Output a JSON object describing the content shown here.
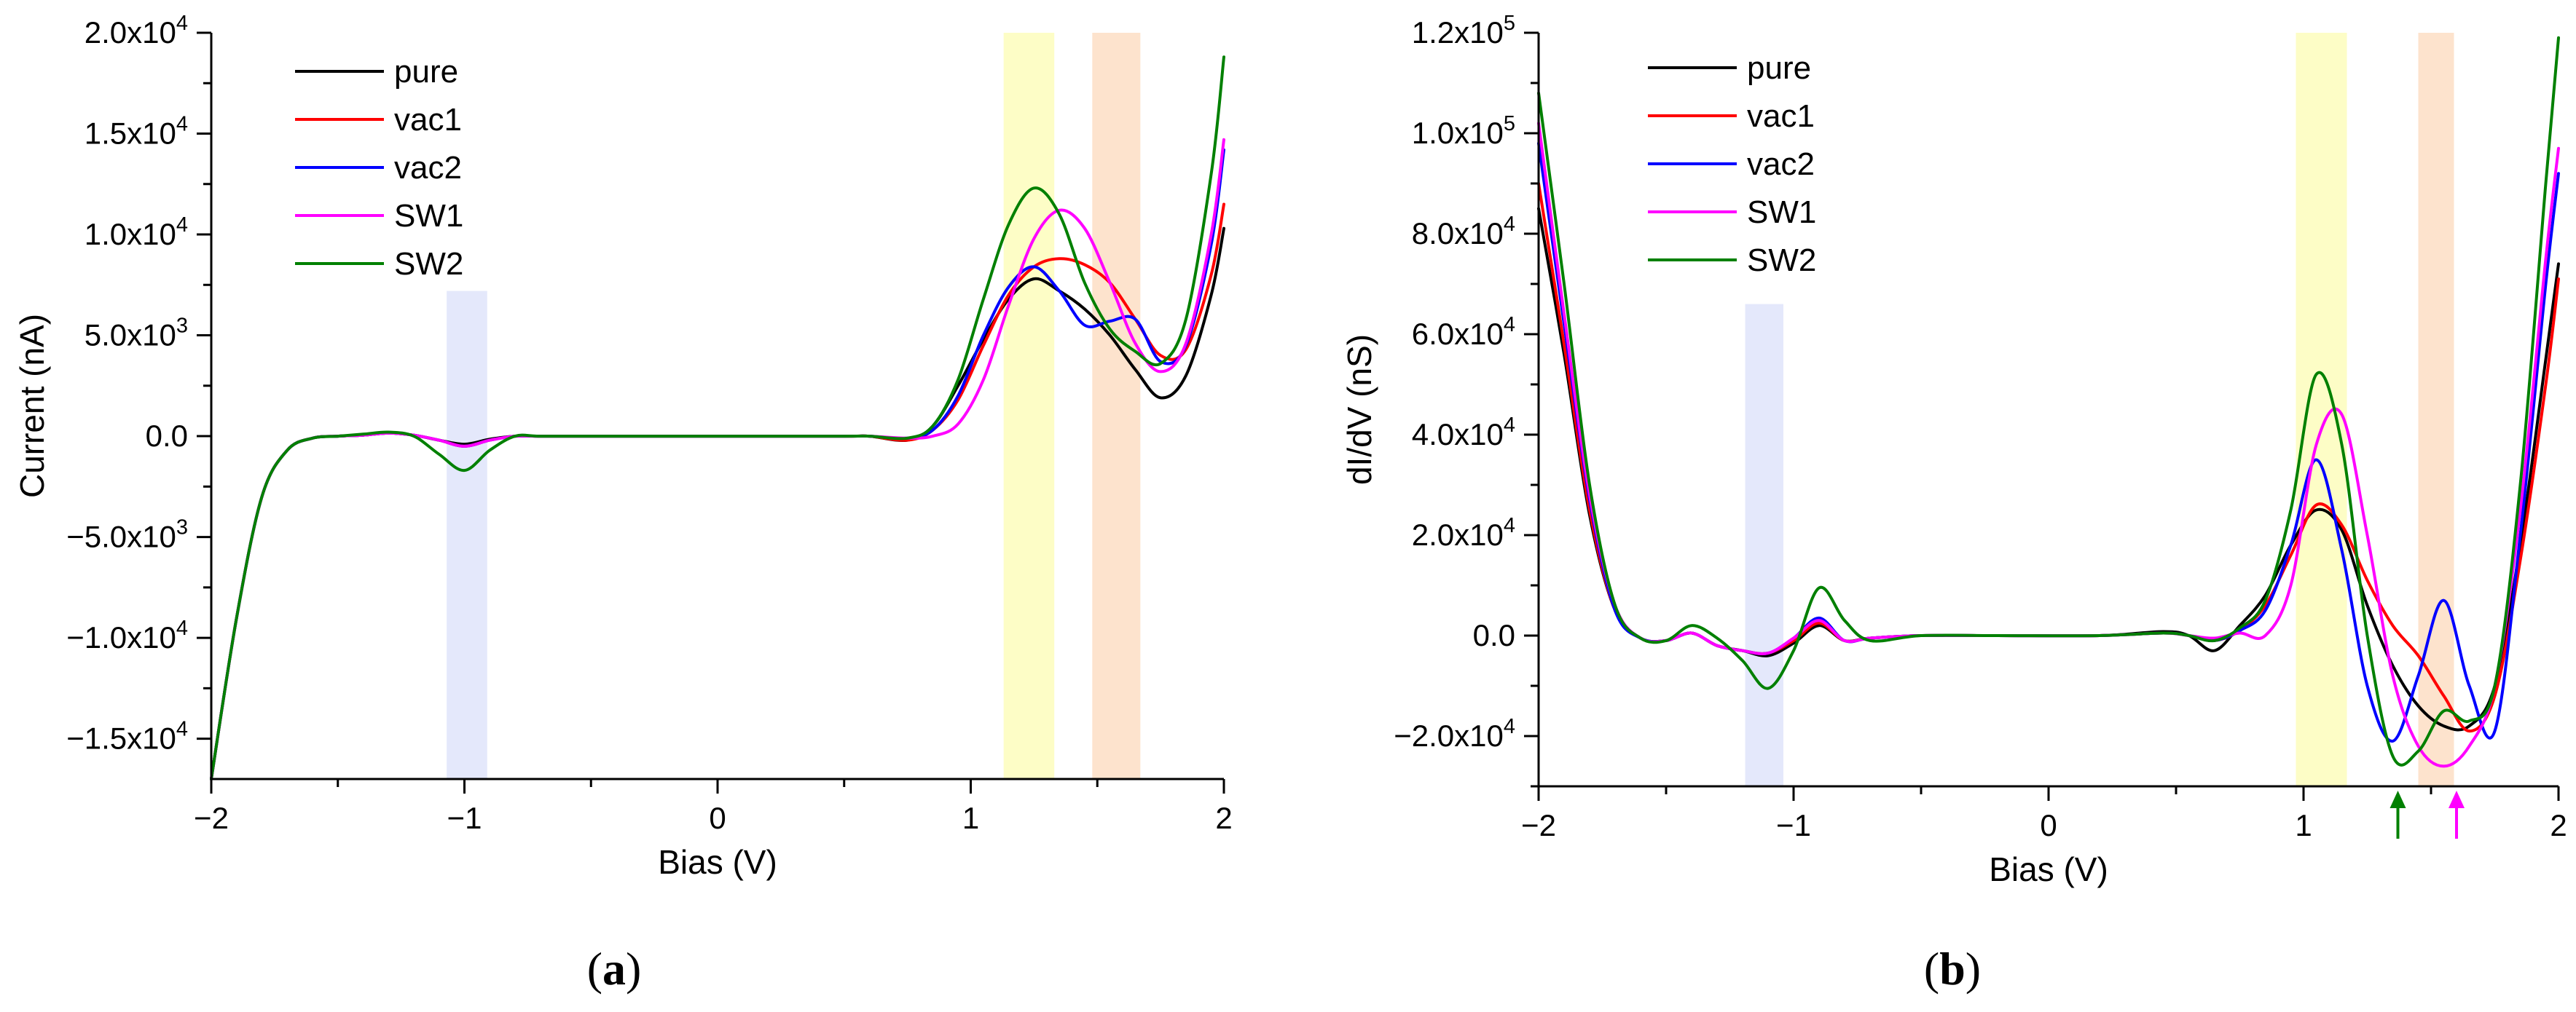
{
  "chart_data": [
    {
      "type": "line",
      "panel_label": "a",
      "xlabel": "Bias (V)",
      "ylabel": "Current (nA)",
      "xlim": [
        -2,
        2
      ],
      "ylim": [
        -17000,
        20000
      ],
      "x_ticks": [
        -2,
        -1,
        0,
        1,
        2
      ],
      "x_tick_labels": [
        "−2",
        "−1",
        "0",
        "1",
        "2"
      ],
      "y_ticks": [
        -15000,
        -10000,
        -5000,
        0,
        5000,
        10000,
        15000,
        20000
      ],
      "y_tick_labels": [
        {
          "mant": "−1.5x10",
          "exp": "4"
        },
        {
          "mant": "−1.0x10",
          "exp": "4"
        },
        {
          "mant": "−5.0x10",
          "exp": "3"
        },
        {
          "mant": "0.0",
          "exp": ""
        },
        {
          "mant": "5.0x10",
          "exp": "3"
        },
        {
          "mant": "1.0x10",
          "exp": "4"
        },
        {
          "mant": "1.5x10",
          "exp": "4"
        },
        {
          "mant": "2.0x10",
          "exp": "4"
        }
      ],
      "bands": [
        {
          "x0": -1.07,
          "x1": -0.91,
          "y0": -17000,
          "y1": 7200,
          "color": "#e4e8fb"
        },
        {
          "x0": 1.13,
          "x1": 1.33,
          "y0": -17000,
          "y1": 20000,
          "color": "#fdfdc6"
        },
        {
          "x0": 1.48,
          "x1": 1.67,
          "y0": -17000,
          "y1": 20000,
          "color": "#fde3cd"
        }
      ],
      "legend": {
        "placement": "top-left"
      },
      "arrows": [],
      "series": [
        {
          "name": "pure",
          "color": "#000000",
          "x": [
            -2.0,
            -1.9,
            -1.8,
            -1.7,
            -1.6,
            -1.5,
            -1.4,
            -1.3,
            -1.2,
            -1.1,
            -1.0,
            -0.9,
            -0.8,
            -0.7,
            -0.5,
            0.0,
            0.5,
            0.6,
            0.75,
            0.85,
            0.95,
            1.05,
            1.15,
            1.25,
            1.35,
            1.45,
            1.55,
            1.65,
            1.75,
            1.85,
            1.95,
            2.0
          ],
          "y": [
            -17000,
            -9000,
            -3000,
            -700,
            -100,
            0,
            50,
            150,
            50,
            -200,
            -400,
            -150,
            0,
            0,
            0,
            0,
            0,
            0,
            -200,
            500,
            2500,
            4800,
            6800,
            7800,
            7200,
            6300,
            5000,
            3300,
            1900,
            3000,
            7000,
            10300
          ]
        },
        {
          "name": "vac1",
          "color": "#ff0000",
          "x": [
            -2.0,
            -1.9,
            -1.8,
            -1.7,
            -1.6,
            -1.5,
            -1.4,
            -1.3,
            -1.2,
            -1.1,
            -1.0,
            -0.9,
            -0.8,
            -0.7,
            -0.5,
            0.0,
            0.5,
            0.6,
            0.75,
            0.85,
            0.95,
            1.05,
            1.15,
            1.25,
            1.35,
            1.45,
            1.55,
            1.65,
            1.75,
            1.85,
            1.95,
            2.0
          ],
          "y": [
            -17000,
            -9000,
            -3000,
            -700,
            -100,
            0,
            50,
            150,
            50,
            -200,
            -500,
            -200,
            0,
            0,
            0,
            0,
            0,
            0,
            -200,
            300,
            1800,
            4500,
            7000,
            8400,
            8800,
            8500,
            7600,
            5800,
            4000,
            4300,
            8000,
            11500
          ]
        },
        {
          "name": "vac2",
          "color": "#0000ff",
          "x": [
            -2.0,
            -1.9,
            -1.8,
            -1.7,
            -1.6,
            -1.5,
            -1.4,
            -1.3,
            -1.2,
            -1.1,
            -1.0,
            -0.9,
            -0.8,
            -0.7,
            -0.5,
            0.0,
            0.5,
            0.6,
            0.75,
            0.85,
            0.95,
            1.05,
            1.15,
            1.25,
            1.35,
            1.45,
            1.55,
            1.65,
            1.75,
            1.85,
            1.95,
            2.0
          ],
          "y": [
            -17000,
            -9000,
            -3000,
            -700,
            -100,
            0,
            50,
            150,
            50,
            -200,
            -500,
            -200,
            0,
            0,
            0,
            0,
            0,
            0,
            -100,
            300,
            2000,
            5000,
            7400,
            8400,
            7200,
            5500,
            5700,
            5800,
            3700,
            4500,
            9500,
            14200
          ]
        },
        {
          "name": "SW1",
          "color": "#ff00ff",
          "x": [
            -2.0,
            -1.9,
            -1.8,
            -1.7,
            -1.6,
            -1.5,
            -1.4,
            -1.3,
            -1.2,
            -1.1,
            -1.0,
            -0.9,
            -0.8,
            -0.7,
            -0.5,
            0.0,
            0.5,
            0.6,
            0.75,
            0.85,
            0.95,
            1.05,
            1.15,
            1.25,
            1.35,
            1.45,
            1.55,
            1.65,
            1.75,
            1.85,
            1.95,
            2.0
          ],
          "y": [
            -17000,
            -9000,
            -3000,
            -700,
            -100,
            0,
            50,
            150,
            50,
            -200,
            -500,
            -200,
            0,
            0,
            0,
            0,
            0,
            0,
            -100,
            0,
            600,
            2800,
            6500,
            9800,
            11200,
            10300,
            7600,
            4600,
            3200,
            4600,
            10000,
            14700
          ]
        },
        {
          "name": "SW2",
          "color": "#008000",
          "x": [
            -2.0,
            -1.9,
            -1.8,
            -1.7,
            -1.6,
            -1.5,
            -1.4,
            -1.3,
            -1.2,
            -1.1,
            -1.0,
            -0.9,
            -0.8,
            -0.7,
            -0.5,
            0.0,
            0.5,
            0.6,
            0.75,
            0.85,
            0.95,
            1.05,
            1.15,
            1.25,
            1.35,
            1.45,
            1.55,
            1.65,
            1.75,
            1.85,
            1.95,
            2.0
          ],
          "y": [
            -17000,
            -9000,
            -3000,
            -700,
            -100,
            0,
            100,
            200,
            0,
            -900,
            -1700,
            -700,
            0,
            0,
            0,
            0,
            0,
            0,
            -100,
            500,
            2800,
            6800,
            10500,
            12300,
            11000,
            7600,
            5300,
            4200,
            3600,
            5800,
            13000,
            18800
          ]
        }
      ]
    },
    {
      "type": "line",
      "panel_label": "b",
      "xlabel": "Bias (V)",
      "ylabel": "dI/dV (nS)",
      "xlim": [
        -2,
        2
      ],
      "ylim": [
        -30000,
        120000
      ],
      "x_ticks": [
        -2,
        -1,
        0,
        1,
        2
      ],
      "x_tick_labels": [
        "−2",
        "−1",
        "0",
        "1",
        "2"
      ],
      "y_ticks": [
        -20000,
        0,
        20000,
        40000,
        60000,
        80000,
        100000,
        120000
      ],
      "y_tick_labels": [
        {
          "mant": "−2.0x10",
          "exp": "4"
        },
        {
          "mant": "0.0",
          "exp": ""
        },
        {
          "mant": "2.0x10",
          "exp": "4"
        },
        {
          "mant": "4.0x10",
          "exp": "4"
        },
        {
          "mant": "6.0x10",
          "exp": "4"
        },
        {
          "mant": "8.0x10",
          "exp": "4"
        },
        {
          "mant": "1.0x10",
          "exp": "5"
        },
        {
          "mant": "1.2x10",
          "exp": "5"
        }
      ],
      "bands": [
        {
          "x0": -1.19,
          "x1": -1.04,
          "y0": -30000,
          "y1": 66000,
          "color": "#e4e8fb"
        },
        {
          "x0": 0.97,
          "x1": 1.17,
          "y0": -30000,
          "y1": 120000,
          "color": "#fdfdc6"
        },
        {
          "x0": 1.45,
          "x1": 1.59,
          "y0": -30000,
          "y1": 120000,
          "color": "#fde3cd"
        }
      ],
      "legend": {
        "placement": "top-left"
      },
      "arrows": [
        {
          "x": 1.37,
          "color": "#008000"
        },
        {
          "x": 1.6,
          "color": "#ff00ff"
        }
      ],
      "series": [
        {
          "name": "pure",
          "color": "#000000",
          "x": [
            -2.0,
            -1.9,
            -1.8,
            -1.7,
            -1.6,
            -1.5,
            -1.4,
            -1.3,
            -1.2,
            -1.1,
            -1.0,
            -0.9,
            -0.8,
            -0.7,
            -0.5,
            -0.2,
            0.2,
            0.45,
            0.55,
            0.65,
            0.75,
            0.85,
            0.95,
            1.05,
            1.15,
            1.25,
            1.35,
            1.45,
            1.55,
            1.65,
            1.75,
            1.85,
            1.95,
            2.0
          ],
          "y": [
            85000,
            56000,
            24000,
            5000,
            -500,
            -1000,
            500,
            -2000,
            -3000,
            -4000,
            -1500,
            2000,
            -1000,
            -500,
            0,
            0,
            0,
            800,
            0,
            -3000,
            2000,
            8000,
            18000,
            25000,
            21000,
            6000,
            -6000,
            -14000,
            -18000,
            -18000,
            -10000,
            18000,
            55000,
            74000
          ]
        },
        {
          "name": "vac1",
          "color": "#ff0000",
          "x": [
            -2.0,
            -1.9,
            -1.8,
            -1.7,
            -1.6,
            -1.5,
            -1.4,
            -1.3,
            -1.2,
            -1.1,
            -1.0,
            -0.9,
            -0.8,
            -0.7,
            -0.5,
            -0.2,
            0.2,
            0.45,
            0.55,
            0.65,
            0.75,
            0.85,
            0.95,
            1.05,
            1.15,
            1.25,
            1.35,
            1.45,
            1.55,
            1.65,
            1.75,
            1.85,
            1.95,
            2.0
          ],
          "y": [
            90000,
            58000,
            25000,
            5000,
            -500,
            -1000,
            500,
            -2000,
            -3000,
            -3500,
            -1000,
            2500,
            -1000,
            -500,
            0,
            0,
            0,
            500,
            0,
            -1000,
            1000,
            6000,
            16000,
            26000,
            22000,
            11000,
            2000,
            -4000,
            -12000,
            -19000,
            -12000,
            15000,
            50000,
            71000
          ]
        },
        {
          "name": "vac2",
          "color": "#0000ff",
          "x": [
            -2.0,
            -1.9,
            -1.8,
            -1.7,
            -1.6,
            -1.5,
            -1.4,
            -1.3,
            -1.2,
            -1.1,
            -1.0,
            -0.9,
            -0.8,
            -0.7,
            -0.5,
            -0.2,
            0.2,
            0.45,
            0.55,
            0.65,
            0.75,
            0.85,
            0.95,
            1.05,
            1.15,
            1.25,
            1.35,
            1.45,
            1.55,
            1.65,
            1.75,
            1.85,
            1.95,
            2.0
          ],
          "y": [
            98000,
            62000,
            27000,
            5000,
            -500,
            -1000,
            500,
            -2000,
            -3000,
            -3500,
            -500,
            3500,
            -1000,
            -500,
            0,
            0,
            0,
            500,
            0,
            -1000,
            1000,
            5000,
            18000,
            35000,
            17000,
            -10000,
            -21000,
            -8000,
            7000,
            -10000,
            -19000,
            20000,
            70000,
            92000
          ]
        },
        {
          "name": "SW1",
          "color": "#ff00ff",
          "x": [
            -2.0,
            -1.9,
            -1.8,
            -1.7,
            -1.6,
            -1.5,
            -1.4,
            -1.3,
            -1.2,
            -1.1,
            -1.0,
            -0.9,
            -0.8,
            -0.7,
            -0.5,
            -0.2,
            0.2,
            0.45,
            0.55,
            0.65,
            0.75,
            0.85,
            0.95,
            1.05,
            1.15,
            1.25,
            1.35,
            1.45,
            1.55,
            1.65,
            1.75,
            1.85,
            1.95,
            2.0
          ],
          "y": [
            102000,
            64000,
            28000,
            6000,
            -500,
            -1000,
            500,
            -2000,
            -3000,
            -3500,
            -500,
            3000,
            -1000,
            -500,
            0,
            0,
            0,
            500,
            0,
            -500,
            500,
            0,
            10000,
            38000,
            44000,
            20000,
            -8000,
            -22000,
            -26000,
            -22000,
            -10000,
            25000,
            75000,
            97000
          ]
        },
        {
          "name": "SW2",
          "color": "#008000",
          "x": [
            -2.0,
            -1.9,
            -1.8,
            -1.7,
            -1.6,
            -1.5,
            -1.4,
            -1.3,
            -1.2,
            -1.1,
            -1.0,
            -0.9,
            -0.8,
            -0.7,
            -0.5,
            -0.2,
            0.2,
            0.45,
            0.55,
            0.65,
            0.75,
            0.85,
            0.95,
            1.05,
            1.15,
            1.25,
            1.35,
            1.45,
            1.55,
            1.65,
            1.75,
            1.85,
            1.95,
            2.0
          ],
          "y": [
            108000,
            70000,
            30000,
            6000,
            -500,
            -1000,
            2000,
            -500,
            -5000,
            -10500,
            -3000,
            9500,
            3000,
            -1000,
            0,
            0,
            0,
            500,
            0,
            -1000,
            1500,
            7000,
            25000,
            52000,
            38000,
            0,
            -24000,
            -23000,
            -15000,
            -17000,
            -10000,
            30000,
            90000,
            119000
          ]
        }
      ]
    }
  ]
}
